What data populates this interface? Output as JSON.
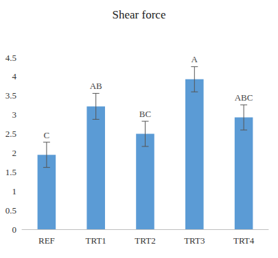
{
  "chart_data": {
    "type": "bar",
    "title": "Shear force",
    "categories": [
      "REF",
      "TRT1",
      "TRT2",
      "TRT3",
      "TRT4"
    ],
    "values": [
      1.95,
      3.22,
      2.5,
      3.93,
      2.93
    ],
    "errors": [
      0.33,
      0.34,
      0.33,
      0.33,
      0.33
    ],
    "annotations": [
      "C",
      "AB",
      "BC",
      "A",
      "ABC"
    ],
    "color": "#5b9bd5",
    "ylim": [
      0,
      4.5
    ],
    "yticks": [
      0,
      0.5,
      1,
      1.5,
      2,
      2.5,
      3,
      3.5,
      4,
      4.5
    ],
    "grid": false
  }
}
